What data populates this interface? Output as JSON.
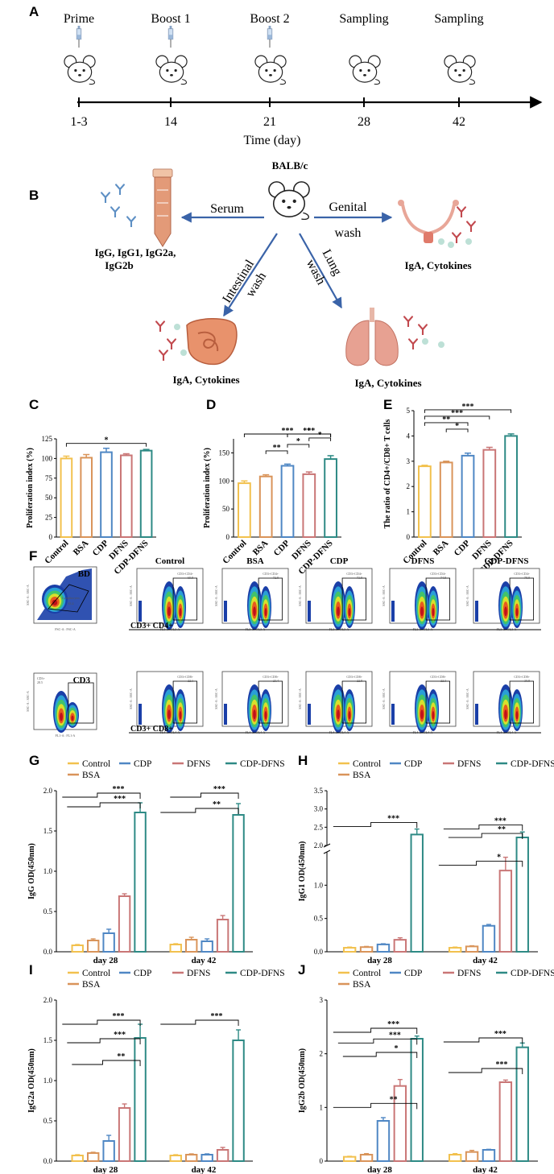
{
  "colors": {
    "Control": "#f2c14e",
    "BSA": "#d9945a",
    "CDP": "#4f87c4",
    "DFNS": "#c97676",
    "CDP-DFNS": "#2e8a85"
  },
  "panelA": {
    "label": "A",
    "events": [
      "Prime",
      "Boost 1",
      "Boost 2",
      "Sampling",
      "Sampling"
    ],
    "days": [
      "1-3",
      "14",
      "21",
      "28",
      "42"
    ],
    "axis_title": "Time (day)"
  },
  "panelB": {
    "label": "B",
    "mouse": "BALB/c",
    "serum": "Serum",
    "serum_targets": "IgG, IgG1, IgG2a,",
    "serum_targets2": "IgG2b",
    "genital1": "Genital",
    "genital2": "wash",
    "intestinal1": "Intestinal",
    "intestinal2": "wash",
    "lung1": "Lung",
    "lung2": "wash",
    "iga_genital": "IgA, Cytokines",
    "iga_intestinal": "IgA, Cytokines",
    "iga_lung": "IgA, Cytokines"
  },
  "panelF": {
    "label": "F",
    "bd_label": "BD",
    "cd3_label": "CD3",
    "groups": [
      "Control",
      "BSA",
      "CDP",
      "DFNS",
      "CDP-DFNS"
    ],
    "row1_label": "CD3+ CD4+",
    "row2_label": "CD3+ CD8+",
    "gate_name": "Lymphocytes",
    "gate_value": "63.4",
    "cd3_value": "28.5",
    "row1_gate": "CD3+CD4+",
    "row2_gate": "CD3+CD8+",
    "row1_values": [
      "69.8",
      "72.8",
      "73.8",
      "74.8",
      "78.8"
    ],
    "row2_values": [
      "22.1",
      "23.4",
      "22.8",
      "22.3",
      "30.8"
    ],
    "axis_fsc": "FSC-A : FSC-A",
    "axis_ssc": "SSC-A : SSC-A",
    "axis_fl1": "FL1-A : FL1-A",
    "axis_fl3": "FL3-A : FL3-A",
    "axis_fl4": "FL4-A : FL4-A",
    "ticks_fsc": [
      "0",
      "100K",
      "200K",
      "300K",
      "400K",
      "500K"
    ],
    "ticks_log": [
      "10^0",
      "10^1",
      "10^2",
      "10^3",
      "10^4",
      "10^5"
    ]
  },
  "chart_data": [
    {
      "id": "C",
      "type": "bar",
      "categories": [
        "Control",
        "BSA",
        "CDP",
        "DFNS",
        "CDP-DFNS"
      ],
      "values": [
        100,
        101,
        108,
        104,
        110
      ],
      "errors": [
        3,
        4,
        5,
        2,
        1.5
      ],
      "ylabel": "Proliferation index (%)",
      "ylim": [
        0,
        125
      ],
      "yticks": [
        "0",
        "25",
        "50",
        "75",
        "100",
        "125"
      ],
      "significance": [
        {
          "from": 0,
          "to": 4,
          "label": "*"
        }
      ]
    },
    {
      "id": "D",
      "type": "bar",
      "categories": [
        "Control",
        "BSA",
        "CDP",
        "DFNS",
        "CDP-DFNS"
      ],
      "values": [
        96,
        108,
        127,
        112,
        139
      ],
      "errors": [
        4,
        3,
        3,
        4,
        6
      ],
      "ylabel": "Proliferation index (%)",
      "ylim": [
        0,
        175
      ],
      "yticks": [
        "0",
        "50",
        "100",
        "150"
      ],
      "significance": [
        {
          "from": 1,
          "to": 2,
          "label": "**"
        },
        {
          "from": 2,
          "to": 3,
          "label": "*"
        },
        {
          "from": 3,
          "to": 4,
          "label": "*"
        },
        {
          "from": 2,
          "to": 4,
          "label": "***"
        },
        {
          "from": 2,
          "to": 4,
          "label": "*"
        },
        {
          "from": 0,
          "to": 4,
          "label": "***"
        }
      ]
    },
    {
      "id": "E",
      "type": "bar",
      "categories": [
        "Control",
        "BSA",
        "CDP",
        "DFNS",
        "CDP-DFNS"
      ],
      "values": [
        2.8,
        2.95,
        3.22,
        3.45,
        4.0
      ],
      "errors": [
        0.04,
        0.05,
        0.1,
        0.1,
        0.08
      ],
      "ylabel": "The ratio of CD4+/CD8+ T cells",
      "ylim": [
        0,
        5
      ],
      "yticks": [
        "0",
        "1",
        "2",
        "3",
        "4",
        "5"
      ],
      "significance": [
        {
          "from": 1,
          "to": 2,
          "label": "*"
        },
        {
          "from": 0,
          "to": 2,
          "label": "**"
        },
        {
          "from": 0,
          "to": 3,
          "label": "***"
        },
        {
          "from": 0,
          "to": 4,
          "label": "***"
        }
      ]
    },
    {
      "id": "G",
      "type": "bar",
      "categories": [
        "day 28",
        "day 42"
      ],
      "series_names": [
        "Control",
        "CDP",
        "DFNS",
        "CDP-DFNS",
        "BSA"
      ],
      "series": [
        {
          "name": "Control",
          "values": [
            0.08,
            0.09
          ],
          "errors": [
            0.01,
            0.01
          ]
        },
        {
          "name": "BSA",
          "values": [
            0.14,
            0.15
          ],
          "errors": [
            0.02,
            0.03
          ]
        },
        {
          "name": "CDP",
          "values": [
            0.23,
            0.13
          ],
          "errors": [
            0.05,
            0.03
          ]
        },
        {
          "name": "DFNS",
          "values": [
            0.69,
            0.4
          ],
          "errors": [
            0.03,
            0.05
          ]
        },
        {
          "name": "CDP-DFNS",
          "values": [
            1.73,
            1.7
          ],
          "errors": [
            0.12,
            0.14
          ]
        }
      ],
      "ylabel": "IgG OD(450nm)",
      "ylim": [
        0,
        2.0
      ],
      "yticks": [
        "0.0",
        "0.5",
        "1.0",
        "1.5",
        "2.0"
      ],
      "significance": [
        {
          "group": 0,
          "label": "***",
          "level": 1.92
        },
        {
          "group": 0,
          "label": "***",
          "level": 1.8
        },
        {
          "group": 1,
          "label": "***",
          "level": 1.92
        },
        {
          "group": 1,
          "label": "**",
          "level": 1.73
        }
      ]
    },
    {
      "id": "H",
      "type": "bar",
      "categories": [
        "day 28",
        "day 42"
      ],
      "series_names": [
        "Control",
        "CDP",
        "DFNS",
        "CDP-DFNS",
        "BSA"
      ],
      "series": [
        {
          "name": "Control",
          "values": [
            0.06,
            0.06
          ],
          "errors": [
            0.01,
            0.01
          ]
        },
        {
          "name": "BSA",
          "values": [
            0.07,
            0.08
          ],
          "errors": [
            0.01,
            0.01
          ]
        },
        {
          "name": "CDP",
          "values": [
            0.11,
            0.39
          ],
          "errors": [
            0.01,
            0.02
          ]
        },
        {
          "name": "DFNS",
          "values": [
            0.18,
            1.22
          ],
          "errors": [
            0.03,
            0.2
          ]
        },
        {
          "name": "CDP-DFNS",
          "values": [
            2.3,
            2.22
          ],
          "errors": [
            0.15,
            0.15
          ]
        }
      ],
      "ylabel": "IgG1 OD(450nm)",
      "axis_break": [
        1.5,
        2.0
      ],
      "ylim": [
        0,
        3.5
      ],
      "yticks": [
        "0.0",
        "0.5",
        "1.0",
        "2.0",
        "2.5",
        "3.0",
        "3.5"
      ],
      "significance": [
        {
          "group": 0,
          "label": "***",
          "level": 2.52
        },
        {
          "group": 1,
          "label": "***",
          "level": 2.45
        },
        {
          "group": 1,
          "label": "**",
          "level": 2.22
        },
        {
          "group": 1,
          "label": "*",
          "level": 1.3
        }
      ]
    },
    {
      "id": "I",
      "type": "bar",
      "categories": [
        "day 28",
        "day 42"
      ],
      "series_names": [
        "Control",
        "CDP",
        "DFNS",
        "CDP-DFNS",
        "BSA"
      ],
      "series": [
        {
          "name": "Control",
          "values": [
            0.07,
            0.07
          ],
          "errors": [
            0.01,
            0.01
          ]
        },
        {
          "name": "BSA",
          "values": [
            0.1,
            0.08
          ],
          "errors": [
            0.01,
            0.01
          ]
        },
        {
          "name": "CDP",
          "values": [
            0.25,
            0.08
          ],
          "errors": [
            0.07,
            0.01
          ]
        },
        {
          "name": "DFNS",
          "values": [
            0.66,
            0.14
          ],
          "errors": [
            0.05,
            0.03
          ]
        },
        {
          "name": "CDP-DFNS",
          "values": [
            1.53,
            1.5
          ],
          "errors": [
            0.17,
            0.13
          ]
        }
      ],
      "ylabel": "IgG2a OD(450nm)",
      "ylim": [
        0,
        2.0
      ],
      "yticks": [
        "0.0",
        "0.5",
        "1.0",
        "1.5",
        "2.0"
      ],
      "significance": [
        {
          "group": 0,
          "label": "***",
          "level": 1.7
        },
        {
          "group": 0,
          "label": "***",
          "level": 1.47
        },
        {
          "group": 0,
          "label": "**",
          "level": 1.2
        },
        {
          "group": 1,
          "label": "***",
          "level": 1.7
        }
      ]
    },
    {
      "id": "J",
      "type": "bar",
      "categories": [
        "day 28",
        "day 42"
      ],
      "series_names": [
        "Control",
        "CDP",
        "DFNS",
        "CDP-DFNS",
        "BSA"
      ],
      "series": [
        {
          "name": "Control",
          "values": [
            0.08,
            0.12
          ],
          "errors": [
            0.01,
            0.02
          ]
        },
        {
          "name": "BSA",
          "values": [
            0.12,
            0.17
          ],
          "errors": [
            0.02,
            0.03
          ]
        },
        {
          "name": "CDP",
          "values": [
            0.75,
            0.21
          ],
          "errors": [
            0.06,
            0.01
          ]
        },
        {
          "name": "DFNS",
          "values": [
            1.4,
            1.47
          ],
          "errors": [
            0.12,
            0.04
          ]
        },
        {
          "name": "CDP-DFNS",
          "values": [
            2.28,
            2.12
          ],
          "errors": [
            0.05,
            0.08
          ]
        }
      ],
      "ylabel": "IgG2b OD(450nm)",
      "ylim": [
        0,
        3
      ],
      "yticks": [
        "0",
        "1",
        "2",
        "3"
      ],
      "significance": [
        {
          "group": 0,
          "label": "***",
          "level": 2.4
        },
        {
          "group": 0,
          "label": "***",
          "level": 2.2
        },
        {
          "group": 0,
          "label": "*",
          "level": 1.95
        },
        {
          "group": 0,
          "label": "**",
          "level": 1.0
        },
        {
          "group": 1,
          "label": "***",
          "level": 2.22
        },
        {
          "group": 1,
          "label": "***",
          "level": 1.65
        }
      ]
    }
  ]
}
